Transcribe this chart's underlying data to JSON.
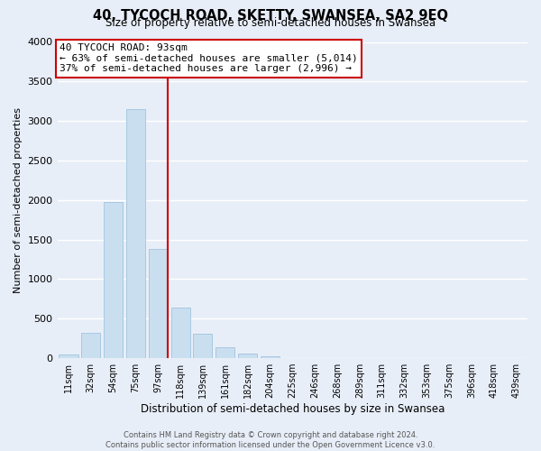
{
  "title": "40, TYCOCH ROAD, SKETTY, SWANSEA, SA2 9EQ",
  "subtitle": "Size of property relative to semi-detached houses in Swansea",
  "bar_labels": [
    "11sqm",
    "32sqm",
    "54sqm",
    "75sqm",
    "97sqm",
    "118sqm",
    "139sqm",
    "161sqm",
    "182sqm",
    "204sqm",
    "225sqm",
    "246sqm",
    "268sqm",
    "289sqm",
    "311sqm",
    "332sqm",
    "353sqm",
    "375sqm",
    "396sqm",
    "418sqm",
    "439sqm"
  ],
  "bar_values": [
    50,
    320,
    1970,
    3150,
    1380,
    640,
    310,
    140,
    60,
    20,
    0,
    0,
    0,
    0,
    0,
    0,
    0,
    0,
    0,
    0,
    0
  ],
  "bar_color": "#c9dff0",
  "bar_edge_color": "#a8c8e0",
  "highlight_bar_index": 4,
  "highlight_color": "#cc0000",
  "ylim": [
    0,
    4000
  ],
  "yticks": [
    0,
    500,
    1000,
    1500,
    2000,
    2500,
    3000,
    3500,
    4000
  ],
  "ylabel": "Number of semi-detached properties",
  "xlabel": "Distribution of semi-detached houses by size in Swansea",
  "annotation_title": "40 TYCOCH ROAD: 93sqm",
  "annotation_line1": "← 63% of semi-detached houses are smaller (5,014)",
  "annotation_line2": "37% of semi-detached houses are larger (2,996) →",
  "vline_bar_index": 4,
  "footer_line1": "Contains HM Land Registry data © Crown copyright and database right 2024.",
  "footer_line2": "Contains public sector information licensed under the Open Government Licence v3.0.",
  "background_color": "#e8eef8",
  "plot_bg_color": "#e8eef8",
  "grid_color": "#ffffff",
  "annotation_box_color": "#cc0000"
}
